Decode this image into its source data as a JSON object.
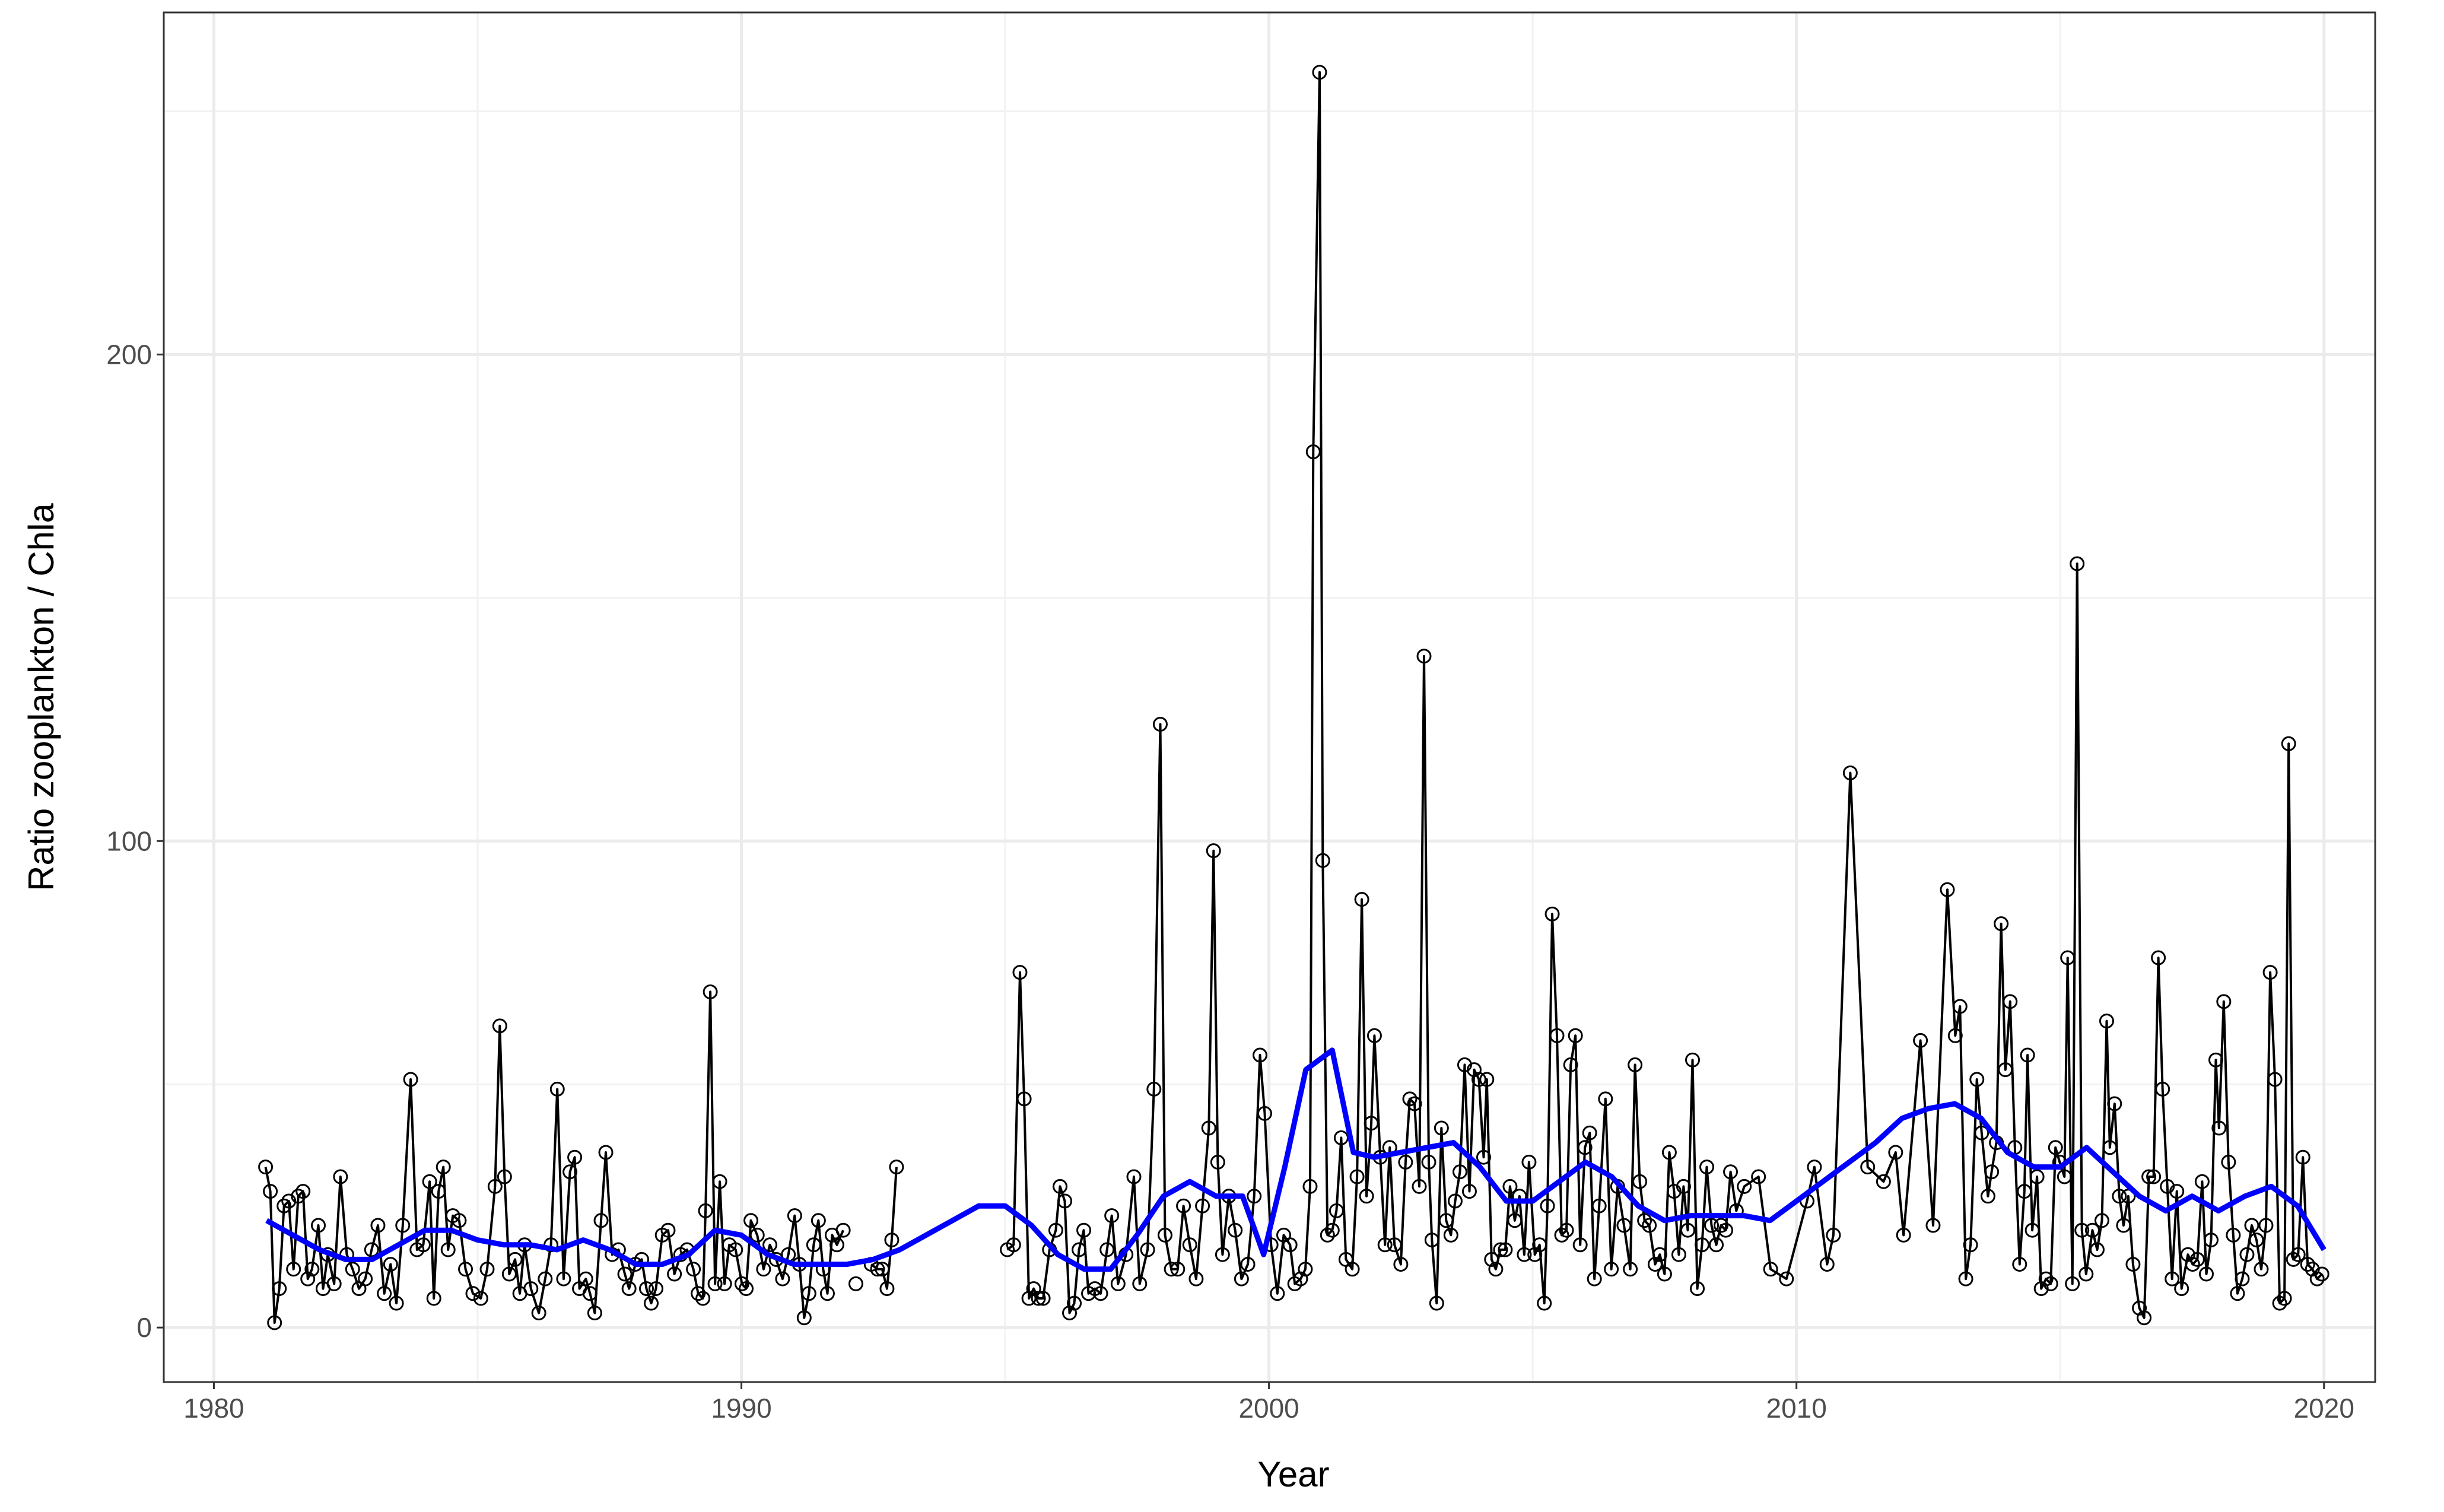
{
  "chart_data": {
    "type": "line",
    "xlabel": "Year",
    "ylabel": "Ratio zooplankton / Chla",
    "xlim": [
      1979.05,
      2020.97
    ],
    "ylim": [
      -11.2,
      270.3
    ],
    "xticks": [
      1980,
      1990,
      2000,
      2010,
      2020
    ],
    "yticks": [
      0,
      100,
      200
    ],
    "x_minor_ticks": [
      1985,
      1995,
      2005,
      2015
    ],
    "y_minor_ticks": [
      50,
      150,
      250
    ],
    "grid": true,
    "series": [
      {
        "color": "#000000",
        "markers": true,
        "x": [
          1980.98,
          1981.07,
          1981.15,
          1981.24,
          1981.33,
          1981.42,
          1981.51,
          1981.6,
          1981.69,
          1981.78,
          1981.86,
          1981.98,
          1982.07,
          1982.16,
          1982.28,
          1982.4,
          1982.52,
          1982.63,
          1982.75,
          1982.87,
          1982.99,
          1983.11,
          1983.23,
          1983.35,
          1983.46,
          1983.58,
          1983.73,
          1983.85,
          1983.97,
          1984.09,
          1984.17,
          1984.26,
          1984.35,
          1984.44,
          1984.53,
          1984.65,
          1984.77,
          1984.91,
          1985.06,
          1985.18,
          1985.33,
          1985.42,
          1985.51,
          1985.6,
          1985.71,
          1985.8,
          1985.89,
          1986.01,
          1986.16,
          1986.28,
          1986.39,
          1986.51,
          1986.63,
          1986.75,
          1986.84,
          1986.93,
          1987.05,
          1987.13,
          1987.22,
          1987.34,
          1987.43,
          1987.55,
          1987.67,
          1987.79,
          1987.87,
          1987.99,
          1988.11,
          1988.2,
          1988.29,
          1988.38,
          1988.5,
          1988.61,
          1988.73,
          1988.85,
          1988.97,
          1989.09,
          1989.18,
          1989.27,
          1989.32,
          1989.41,
          1989.5,
          1989.59,
          1989.68,
          1989.77,
          1989.89,
          1990.01,
          1990.09,
          1990.18,
          1990.3,
          1990.42,
          1990.54,
          1990.66,
          1990.78,
          1990.89,
          1991.01,
          1991.1,
          1991.19,
          1991.28,
          1991.37,
          1991.46,
          1991.55,
          1991.63,
          1991.72,
          1991.81,
          1991.93,
          null,
          1992.17,
          null,
          1992.46,
          1992.58,
          1992.67,
          1992.76,
          1992.85,
          1992.94,
          null,
          1995.04,
          1995.16,
          1995.28,
          1995.36,
          1995.45,
          1995.54,
          1995.63,
          1995.72,
          1995.84,
          1995.96,
          1996.04,
          1996.13,
          1996.22,
          1996.31,
          1996.4,
          1996.49,
          1996.58,
          1996.7,
          1996.81,
          1996.93,
          1997.02,
          1997.14,
          1997.29,
          1997.44,
          1997.55,
          1997.7,
          1997.82,
          1997.94,
          1998.03,
          1998.15,
          1998.27,
          1998.38,
          1998.5,
          1998.62,
          1998.74,
          1998.86,
          1998.95,
          1999.03,
          1999.12,
          1999.24,
          1999.36,
          1999.48,
          1999.6,
          1999.72,
          1999.83,
          1999.92,
          2000.04,
          2000.16,
          2000.28,
          2000.4,
          2000.49,
          2000.6,
          2000.69,
          2000.78,
          2000.84,
          2000.96,
          2001.02,
          2001.11,
          2001.2,
          2001.28,
          2001.37,
          2001.46,
          2001.58,
          2001.67,
          2001.76,
          2001.85,
          2001.94,
          2002.0,
          2002.11,
          2002.2,
          2002.29,
          2002.38,
          2002.5,
          2002.59,
          2002.67,
          2002.76,
          2002.85,
          2002.94,
          2003.03,
          2003.09,
          2003.18,
          2003.27,
          2003.36,
          2003.45,
          2003.53,
          2003.62,
          2003.71,
          2003.8,
          2003.89,
          2003.98,
          2004.07,
          2004.13,
          2004.22,
          2004.3,
          2004.39,
          2004.48,
          2004.57,
          2004.66,
          2004.75,
          2004.84,
          2004.93,
          2005.04,
          2005.13,
          2005.22,
          2005.28,
          2005.37,
          2005.46,
          2005.55,
          2005.64,
          2005.72,
          2005.81,
          2005.9,
          2005.99,
          2006.08,
          2006.17,
          2006.26,
          2006.38,
          2006.49,
          2006.61,
          2006.73,
          2006.85,
          2006.94,
          2007.03,
          2007.12,
          2007.21,
          2007.32,
          2007.41,
          2007.5,
          2007.59,
          2007.68,
          2007.77,
          2007.86,
          2007.94,
          2008.03,
          2008.12,
          2008.21,
          2008.3,
          2008.39,
          2008.48,
          2008.57,
          2008.66,
          2008.75,
          2008.86,
          2009.01,
          2009.28,
          2009.51,
          2009.81,
          2010.2,
          2010.34,
          2010.58,
          2010.7,
          2011.02,
          2011.35,
          2011.65,
          2011.88,
          2012.03,
          2012.35,
          2012.59,
          2012.86,
          2013.01,
          2013.1,
          2013.21,
          2013.3,
          2013.42,
          2013.51,
          2013.63,
          2013.7,
          2013.79,
          2013.88,
          2013.96,
          2014.05,
          2014.14,
          2014.23,
          2014.32,
          2014.38,
          2014.47,
          2014.56,
          2014.64,
          2014.73,
          2014.82,
          2014.91,
          2014.99,
          2015.08,
          2015.14,
          2015.23,
          2015.32,
          2015.41,
          2015.49,
          2015.61,
          2015.7,
          2015.79,
          2015.88,
          2015.94,
          2016.03,
          2016.12,
          2016.2,
          2016.29,
          2016.38,
          2016.5,
          2016.59,
          2016.68,
          2016.77,
          2016.86,
          2016.94,
          2017.03,
          2017.12,
          2017.21,
          2017.3,
          2017.42,
          2017.51,
          2017.6,
          2017.69,
          2017.77,
          2017.86,
          2017.95,
          2018.01,
          2018.1,
          2018.19,
          2018.28,
          2018.36,
          2018.45,
          2018.54,
          2018.63,
          2018.72,
          2018.81,
          2018.9,
          2018.98,
          2019.07,
          2019.16,
          2019.25,
          2019.33,
          2019.42,
          2019.51,
          2019.6,
          2019.69,
          2019.78,
          2019.87,
          2019.96
        ],
        "values": [
          33,
          28,
          1,
          8,
          25,
          26,
          12,
          27,
          28,
          10,
          12,
          21,
          8,
          15,
          9,
          31,
          15,
          12,
          8,
          10,
          16,
          21,
          7,
          13,
          5,
          21,
          51,
          16,
          17,
          30,
          6,
          28,
          33,
          16,
          23,
          22,
          12,
          7,
          6,
          12,
          29,
          62,
          31,
          11,
          14,
          7,
          17,
          8,
          3,
          10,
          17,
          49,
          10,
          32,
          35,
          8,
          10,
          7,
          3,
          22,
          36,
          15,
          16,
          11,
          8,
          13,
          14,
          8,
          5,
          8,
          19,
          20,
          11,
          15,
          16,
          12,
          7,
          6,
          24,
          69,
          9,
          30,
          9,
          17,
          16,
          9,
          8,
          22,
          19,
          12,
          17,
          14,
          10,
          15,
          23,
          13,
          2,
          7,
          17,
          22,
          12,
          7,
          19,
          17,
          20,
          null,
          9,
          null,
          13,
          12,
          12,
          8,
          18,
          33,
          null,
          16,
          17,
          73,
          47,
          6,
          8,
          6,
          6,
          16,
          20,
          29,
          26,
          3,
          5,
          16,
          20,
          7,
          8,
          7,
          16,
          23,
          9,
          15,
          31,
          9,
          16,
          49,
          124,
          19,
          12,
          12,
          25,
          17,
          10,
          25,
          41,
          98,
          34,
          15,
          27,
          20,
          10,
          13,
          27,
          56,
          44,
          17,
          7,
          19,
          17,
          9,
          10,
          12,
          29,
          180,
          258,
          96,
          19,
          20,
          24,
          39,
          14,
          12,
          31,
          88,
          27,
          42,
          60,
          35,
          17,
          37,
          17,
          13,
          34,
          47,
          46,
          29,
          138,
          34,
          18,
          5,
          41,
          22,
          19,
          26,
          32,
          54,
          28,
          53,
          51,
          35,
          51,
          14,
          12,
          16,
          16,
          29,
          22,
          27,
          15,
          34,
          15,
          17,
          5,
          25,
          85,
          60,
          19,
          20,
          54,
          60,
          17,
          37,
          40,
          10,
          25,
          47,
          12,
          29,
          21,
          12,
          54,
          30,
          22,
          21,
          13,
          15,
          11,
          36,
          28,
          15,
          29,
          20,
          55,
          8,
          17,
          33,
          21,
          17,
          21,
          20,
          32,
          24,
          29,
          31,
          12,
          10,
          26,
          33,
          13,
          19,
          114,
          33,
          30,
          36,
          19,
          59,
          21,
          90,
          60,
          66,
          10,
          17,
          51,
          40,
          27,
          32,
          38,
          83,
          53,
          67,
          37,
          13,
          28,
          56,
          20,
          31,
          8,
          10,
          9,
          37,
          34,
          31,
          76,
          9,
          157,
          20,
          11,
          20,
          16,
          22,
          63,
          37,
          46,
          27,
          21,
          27,
          13,
          4,
          2,
          31,
          31,
          76,
          49,
          29,
          10,
          28,
          8,
          15,
          13,
          14,
          30,
          11,
          18,
          55,
          41,
          67,
          34,
          19,
          7,
          10,
          15,
          21,
          18,
          12,
          21,
          73,
          51,
          5,
          6,
          120,
          14,
          15,
          35,
          13,
          12,
          10,
          11
        ]
      },
      {
        "color": "#0000ff",
        "markers": false,
        "x": [
          1981,
          1981.5,
          1982,
          1982.5,
          1983,
          1983.5,
          1984,
          1984.5,
          1985,
          1985.5,
          1986,
          1986.5,
          1987,
          1987.5,
          1988,
          1988.5,
          1989,
          1989.5,
          1990,
          1990.5,
          1991,
          1991.5,
          1992,
          1992.5,
          1993,
          1993.5,
          1994,
          1994.5,
          1995,
          1995.5,
          1996,
          1996.5,
          1997,
          1997.5,
          1998,
          1998.5,
          1999,
          1999.5,
          1999.9,
          2000.3,
          2000.7,
          2001.2,
          2001.6,
          2002,
          2002.5,
          2003,
          2003.5,
          2004,
          2004.5,
          2005,
          2005.5,
          2006,
          2006.5,
          2007,
          2007.5,
          2008,
          2008.5,
          2009,
          2009.5,
          2010,
          2010.5,
          2011,
          2011.5,
          2012,
          2012.5,
          2013,
          2013.5,
          2014,
          2014.5,
          2015,
          2015.5,
          2016,
          2016.5,
          2017,
          2017.5,
          2018,
          2018.5,
          2019,
          2019.5,
          2020
        ],
        "values": [
          22,
          19,
          16,
          14,
          14,
          17,
          20,
          20,
          18,
          17,
          17,
          16,
          18,
          16,
          13,
          13,
          15,
          20,
          19,
          15,
          13,
          13,
          13,
          14,
          16,
          19,
          22,
          25,
          25,
          21,
          15,
          12,
          12,
          19,
          27,
          30,
          27,
          27,
          15,
          33,
          53,
          57,
          36,
          35,
          36,
          37,
          38,
          33,
          26,
          26,
          30,
          34,
          31,
          25,
          22,
          23,
          23,
          23,
          22,
          26,
          30,
          34,
          38,
          43,
          45,
          46,
          43,
          36,
          33,
          33,
          37,
          32,
          27,
          24,
          27,
          24,
          27,
          29,
          25,
          16
        ]
      }
    ]
  }
}
